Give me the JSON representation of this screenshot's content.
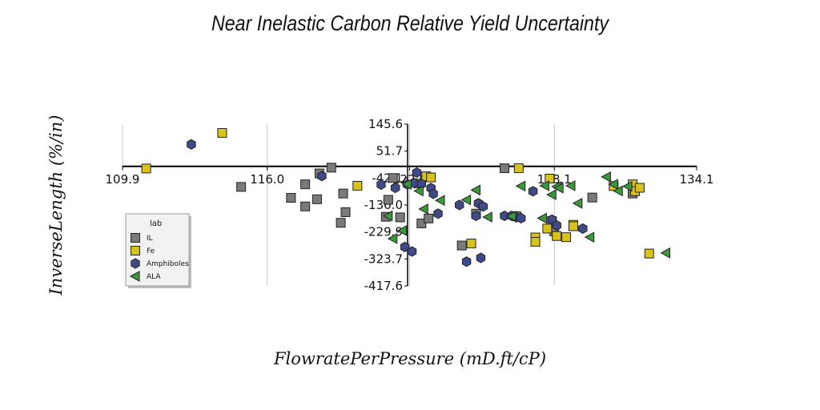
{
  "chart_data": {
    "type": "scatter",
    "title": "Near Inelastic Carbon Relative Yield Uncertainty",
    "xlabel": "FlowratePerPressure (mD.ft/cP)",
    "ylabel": "InverseLength (%/in)",
    "xlim": [
      109.9,
      134.1
    ],
    "ylim": [
      -417.6,
      145.6
    ],
    "x_ticks": [
      "109.9",
      "116.0",
      "122.0",
      "128.1",
      "134.1"
    ],
    "y_ticks": [
      "145.6",
      "51.7",
      "-42.1",
      "-136.0",
      "-229.9",
      "-323.7",
      "-417.6"
    ],
    "grid": "vertical",
    "legend": {
      "title": "lab",
      "position": "bottom-left"
    },
    "colors": {
      "IL": "#7a7a7a",
      "Fe": "#d8c21c",
      "Amphiboles": "#3f4a88",
      "ALA": "#3a9a3a"
    },
    "series": [
      {
        "name": "IL",
        "marker": "square",
        "points": [
          [
            114.9,
            -73
          ],
          [
            117.0,
            -111
          ],
          [
            117.6,
            -141
          ],
          [
            117.6,
            -64
          ],
          [
            118.1,
            -116
          ],
          [
            118.2,
            -26
          ],
          [
            118.7,
            -6
          ],
          [
            119.1,
            -198
          ],
          [
            119.2,
            -96
          ],
          [
            119.3,
            -161
          ],
          [
            121.0,
            -177
          ],
          [
            121.1,
            -118
          ],
          [
            121.3,
            -42
          ],
          [
            121.6,
            -179
          ],
          [
            122.5,
            -200
          ],
          [
            122.8,
            -183
          ],
          [
            124.2,
            -277
          ],
          [
            124.8,
            -166
          ],
          [
            126.0,
            -8
          ],
          [
            126.5,
            -175
          ],
          [
            128.0,
            -192
          ],
          [
            128.1,
            -228
          ],
          [
            129.7,
            -110
          ],
          [
            131.4,
            -96
          ]
        ]
      },
      {
        "name": "Fe",
        "marker": "square",
        "points": [
          [
            110.9,
            -9
          ],
          [
            114.1,
            115
          ],
          [
            119.8,
            -69
          ],
          [
            122.4,
            -61
          ],
          [
            122.7,
            -36
          ],
          [
            122.9,
            -40
          ],
          [
            124.6,
            -270
          ],
          [
            126.6,
            -8
          ],
          [
            127.3,
            -249
          ],
          [
            127.3,
            -264
          ],
          [
            127.8,
            -218
          ],
          [
            127.9,
            -44
          ],
          [
            128.2,
            -244
          ],
          [
            128.6,
            -248
          ],
          [
            128.9,
            -205
          ],
          [
            128.9,
            -210
          ],
          [
            130.6,
            -70
          ],
          [
            131.4,
            -64
          ],
          [
            131.5,
            -88
          ],
          [
            131.7,
            -76
          ],
          [
            132.1,
            -305
          ]
        ]
      },
      {
        "name": "Amphiboles",
        "marker": "hexagon",
        "points": [
          [
            112.8,
            75
          ],
          [
            118.3,
            -35
          ],
          [
            120.8,
            -65
          ],
          [
            121.4,
            -76
          ],
          [
            121.8,
            -282
          ],
          [
            121.9,
            -64
          ],
          [
            122.1,
            -298
          ],
          [
            122.2,
            -60
          ],
          [
            122.3,
            -23
          ],
          [
            122.5,
            -63
          ],
          [
            122.9,
            -77
          ],
          [
            123.0,
            -97
          ],
          [
            123.2,
            -166
          ],
          [
            124.1,
            -136
          ],
          [
            124.4,
            -333
          ],
          [
            124.8,
            -174
          ],
          [
            124.9,
            -130
          ],
          [
            125.0,
            -320
          ],
          [
            125.1,
            -141
          ],
          [
            126.0,
            -174
          ],
          [
            126.3,
            -174
          ],
          [
            126.5,
            -179
          ],
          [
            126.7,
            -182
          ],
          [
            127.2,
            -88
          ],
          [
            128.0,
            -187
          ],
          [
            128.2,
            -207
          ],
          [
            129.3,
            -218
          ]
        ]
      },
      {
        "name": "ALA",
        "marker": "triangle-left",
        "points": [
          [
            121.1,
            -174
          ],
          [
            121.3,
            -253
          ],
          [
            121.7,
            -225
          ],
          [
            121.9,
            -64
          ],
          [
            122.4,
            -87
          ],
          [
            122.6,
            -150
          ],
          [
            123.3,
            -120
          ],
          [
            124.4,
            -118
          ],
          [
            124.8,
            -84
          ],
          [
            125.3,
            -178
          ],
          [
            126.3,
            -175
          ],
          [
            126.7,
            -70
          ],
          [
            127.6,
            -182
          ],
          [
            127.7,
            -69
          ],
          [
            128.0,
            -100
          ],
          [
            128.2,
            -72
          ],
          [
            128.3,
            -77
          ],
          [
            128.8,
            -69
          ],
          [
            129.1,
            -130
          ],
          [
            129.6,
            -248
          ],
          [
            130.3,
            -38
          ],
          [
            130.6,
            -64
          ],
          [
            130.8,
            -87
          ],
          [
            131.2,
            -71
          ],
          [
            132.8,
            -303
          ]
        ]
      }
    ]
  }
}
